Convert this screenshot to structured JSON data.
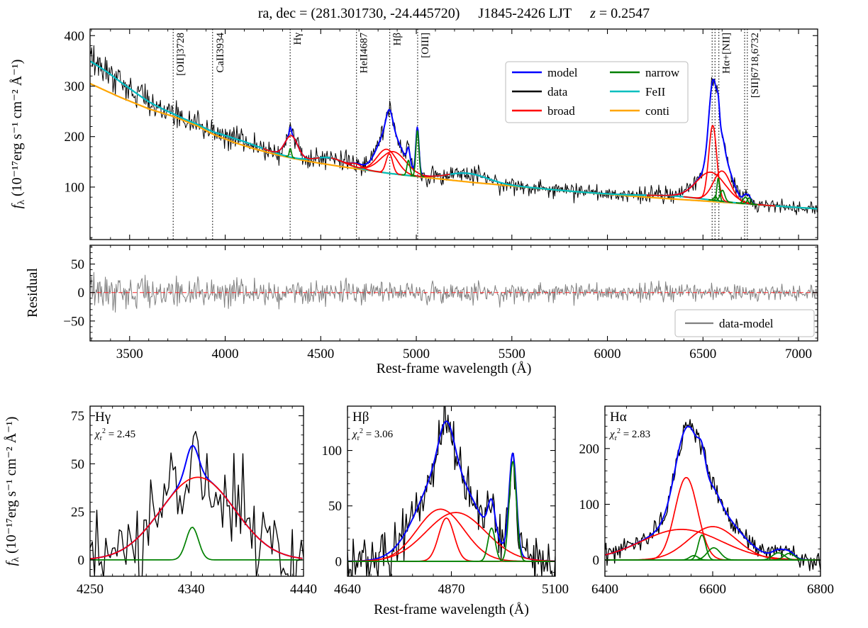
{
  "title": {
    "coords": "ra, dec = (281.301730, -24.445720)",
    "name": "J1845-2426 LJT",
    "z": "z",
    "z_eq": "= 0.2547"
  },
  "axis_labels": {
    "flux_f": "f",
    "flux_sub": "λ",
    "flux_unit": " (10⁻¹⁷erg s⁻¹ cm⁻² Å⁻¹)",
    "residual": "Residual",
    "wavelength": "Rest-frame wavelength (Å)"
  },
  "legend_main": {
    "columns": [
      [
        {
          "label": "model",
          "color": "#0000ff"
        },
        {
          "label": "data",
          "color": "#000000"
        },
        {
          "label": "broad",
          "color": "#ff0000"
        }
      ],
      [
        {
          "label": "narrow",
          "color": "#008000"
        },
        {
          "label": "FeII",
          "color": "#00bfbf"
        },
        {
          "label": "conti",
          "color": "#ffa500"
        }
      ]
    ]
  },
  "legend_residual": {
    "label": "data-model",
    "color": "#808080"
  },
  "line_markers": [
    {
      "label": "[OII]3728",
      "waves": [
        3728
      ]
    },
    {
      "label": "CaII3934",
      "waves": [
        3934
      ]
    },
    {
      "label": "Hγ",
      "waves": [
        4340
      ]
    },
    {
      "label": "HeII4687",
      "waves": [
        4687
      ]
    },
    {
      "label": "Hβ",
      "waves": [
        4861
      ]
    },
    {
      "label": "[OIII]",
      "waves": [
        5007
      ]
    },
    {
      "label": "Hα+[NII]",
      "waves": [
        6548,
        6563,
        6583
      ]
    },
    {
      "label": "[SII]6718,6732",
      "waves": [
        6718,
        6732
      ]
    }
  ],
  "colors": {
    "model": "#0000ff",
    "data": "#000000",
    "broad": "#ff0000",
    "narrow": "#008000",
    "fe2": "#00bfbf",
    "conti": "#ffa500",
    "residual": "#808080",
    "zero_line": "#ff2222"
  },
  "chart_data": {
    "type": "line",
    "xlabel": "Rest-frame wavelength (Å)",
    "ylabel": "f_λ (10⁻¹⁷ erg s⁻¹ cm⁻² Å⁻¹)",
    "main_panel": {
      "xlim": [
        3293,
        7100
      ],
      "ylim": [
        -4,
        413
      ],
      "xticks": [
        3500,
        4000,
        4500,
        5000,
        5500,
        6000,
        6500,
        7000
      ],
      "yticks": [
        100,
        200,
        300,
        400
      ],
      "continuum_points": [
        [
          3293,
          305
        ],
        [
          3450,
          278
        ],
        [
          3600,
          255
        ],
        [
          3728,
          240
        ],
        [
          3850,
          222
        ],
        [
          3934,
          205
        ],
        [
          4050,
          188
        ],
        [
          4150,
          176
        ],
        [
          4250,
          166
        ],
        [
          4340,
          158
        ],
        [
          4450,
          150
        ],
        [
          4600,
          141
        ],
        [
          4750,
          133
        ],
        [
          4861,
          127
        ],
        [
          5000,
          121
        ],
        [
          5150,
          115
        ],
        [
          5300,
          109
        ],
        [
          5450,
          104
        ],
        [
          5600,
          99
        ],
        [
          5800,
          92
        ],
        [
          6000,
          86
        ],
        [
          6200,
          80
        ],
        [
          6400,
          75
        ],
        [
          6563,
          71
        ],
        [
          6750,
          66
        ],
        [
          6900,
          62
        ],
        [
          7100,
          57
        ]
      ],
      "fe2_gaussians": [
        [
          3250,
          45,
          230
        ],
        [
          4080,
          8,
          130
        ],
        [
          4550,
          14,
          75
        ],
        [
          5270,
          17,
          105
        ],
        [
          6350,
          6,
          160
        ]
      ],
      "broad_gaussians": [
        [
          4346,
          43,
          33
        ],
        [
          4687,
          7,
          30
        ],
        [
          4846,
          47,
          52
        ],
        [
          4859,
          39,
          17
        ],
        [
          4880,
          44,
          66
        ],
        [
          6542,
          55,
          75
        ],
        [
          6551,
          148,
          21
        ],
        [
          6600,
          60,
          45
        ]
      ],
      "narrow_gaussians": [
        [
          4341,
          17,
          5.5
        ],
        [
          4959,
          30,
          8
        ],
        [
          5006,
          90,
          8
        ],
        [
          6565,
          8,
          8
        ],
        [
          6580,
          45,
          7
        ],
        [
          6602,
          22,
          12
        ],
        [
          6722,
          13,
          11
        ],
        [
          6742,
          12,
          10
        ]
      ],
      "noise": {
        "seed": 12,
        "step": 4,
        "sigma_points": [
          [
            3293,
            15
          ],
          [
            3800,
            12
          ],
          [
            4300,
            10.5
          ],
          [
            5000,
            9
          ],
          [
            5600,
            8
          ],
          [
            6200,
            7
          ],
          [
            7100,
            6.5
          ]
        ]
      }
    },
    "residual_panel": {
      "ylim": [
        -85,
        83
      ],
      "yticks": [
        -50,
        0,
        50
      ]
    },
    "subplots": [
      {
        "id": "hgamma",
        "title": "Hγ",
        "chi_sym": "χ",
        "chi_sub": "r",
        "chi_sup": "2",
        "chi_eq": " = ",
        "chi2": "2.45",
        "xlim": [
          4250,
          4440
        ],
        "xticks": [
          4250,
          4340,
          4440
        ],
        "ylim": [
          -8.5,
          80
        ],
        "yticks": [
          0,
          25,
          50,
          75
        ],
        "broad": [
          [
            4346,
            43,
            33
          ]
        ],
        "narrow": [
          [
            4341,
            17,
            5.5
          ]
        ],
        "noise": {
          "seed": 31,
          "step": 2,
          "sigma": 12
        }
      },
      {
        "id": "hbeta",
        "title": "Hβ",
        "chi_sym": "χ",
        "chi_sub": "r",
        "chi_sup": "2",
        "chi_eq": " = ",
        "chi2": "3.06",
        "xlim": [
          4640,
          5100
        ],
        "xticks": [
          4640,
          4870,
          5100
        ],
        "ylim": [
          -13.5,
          140
        ],
        "yticks": [
          0,
          50,
          100
        ],
        "broad": [
          [
            4846,
            47,
            52
          ],
          [
            4859,
            39,
            17
          ],
          [
            4880,
            44,
            66
          ]
        ],
        "narrow": [
          [
            4959,
            30,
            8
          ],
          [
            5006,
            90,
            8
          ]
        ],
        "noise": {
          "seed": 47,
          "step": 2.5,
          "sigma": 11
        }
      },
      {
        "id": "halpha",
        "title": "Hα",
        "chi_sym": "χ",
        "chi_sub": "r",
        "chi_sup": "2",
        "chi_eq": " = ",
        "chi2": "2.83",
        "xlim": [
          6400,
          6800
        ],
        "xticks": [
          6400,
          6600,
          6800
        ],
        "ylim": [
          -29,
          276
        ],
        "yticks": [
          0,
          100,
          200
        ],
        "broad": [
          [
            6542,
            55,
            75
          ],
          [
            6551,
            148,
            21
          ],
          [
            6600,
            60,
            45
          ]
        ],
        "narrow": [
          [
            6565,
            8,
            8
          ],
          [
            6580,
            45,
            7
          ],
          [
            6602,
            22,
            12
          ],
          [
            6722,
            13,
            11
          ],
          [
            6742,
            12,
            10
          ]
        ],
        "noise": {
          "seed": 53,
          "step": 2,
          "sigma": 9
        }
      }
    ]
  }
}
